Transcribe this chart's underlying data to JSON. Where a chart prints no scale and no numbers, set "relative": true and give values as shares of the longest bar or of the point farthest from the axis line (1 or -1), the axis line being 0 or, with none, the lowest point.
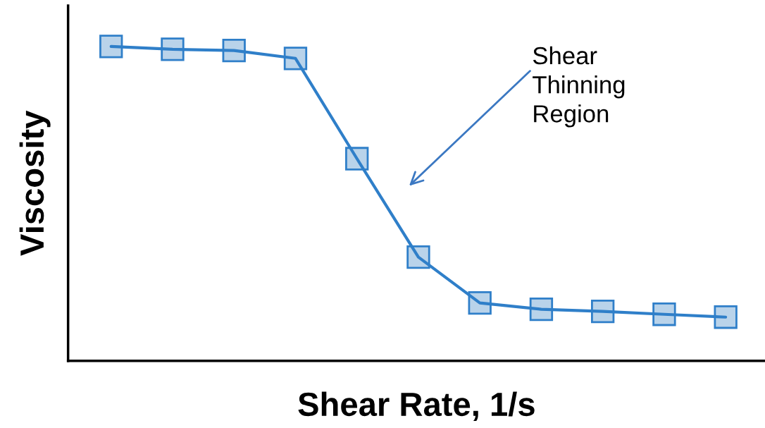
{
  "chart_data": {
    "type": "line",
    "relative": true,
    "xlabel": "Shear Rate, 1/s",
    "ylabel": "Viscosity",
    "categories": [
      null,
      null,
      null,
      null,
      null,
      null,
      null,
      null,
      null,
      null,
      null
    ],
    "series": [
      {
        "color": "#2f7fc9",
        "values": [
          1,
          0.991,
          0.987,
          0.962,
          0.643,
          0.33,
          0.184,
          0.164,
          0.157,
          0.148,
          0.139
        ]
      }
    ],
    "marker": "square",
    "line_style": "solid",
    "grid": false,
    "legend": false,
    "annotations": [
      "Shear\nThinning\nRegion"
    ]
  }
}
